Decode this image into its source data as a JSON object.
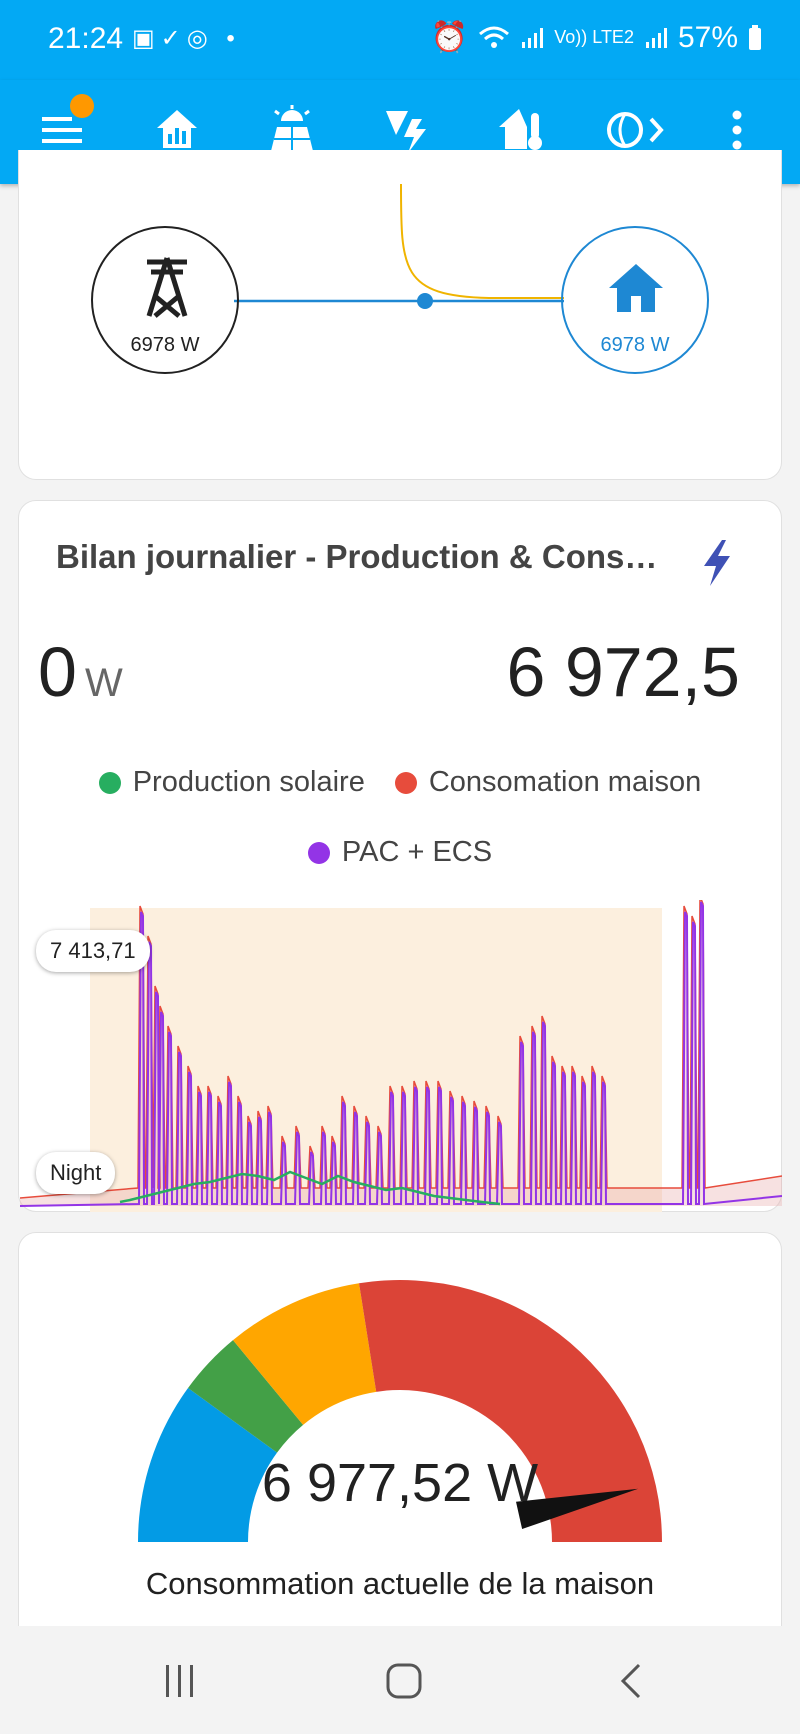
{
  "status_bar": {
    "time": "21:24",
    "dot": "•",
    "lte": "Vo)) LTE2",
    "battery": "57%"
  },
  "app_bar": {
    "tabs": [
      "home-icon",
      "solar-panel-icon",
      "weather-lightning-icon",
      "home-thermometer-icon",
      "earth-icon"
    ]
  },
  "energy_flow": {
    "grid_value": "6978 W",
    "home_value": "6978 W"
  },
  "daily_card": {
    "title": "Bilan journalier - Production & Cons…",
    "value_left": "0",
    "value_left_unit": "W",
    "value_right": "6 972,5",
    "legend": [
      {
        "label": "Production solaire",
        "color": "#27ae60"
      },
      {
        "label": "Consomation maison",
        "color": "#e74c3c"
      },
      {
        "label": "PAC + ECS",
        "color": "#9334e6"
      }
    ],
    "tooltip_max": "7 413,71",
    "tooltip_night": "Night"
  },
  "gauge": {
    "value": "6 977,52 W",
    "label": "Consommation actuelle de la maison",
    "fraction": 0.93
  },
  "colors": {
    "accent": "#03a9f4",
    "gauge_blue": "#039be5",
    "gauge_green": "#43a047",
    "gauge_orange": "#ffa600",
    "gauge_red": "#db4437"
  }
}
